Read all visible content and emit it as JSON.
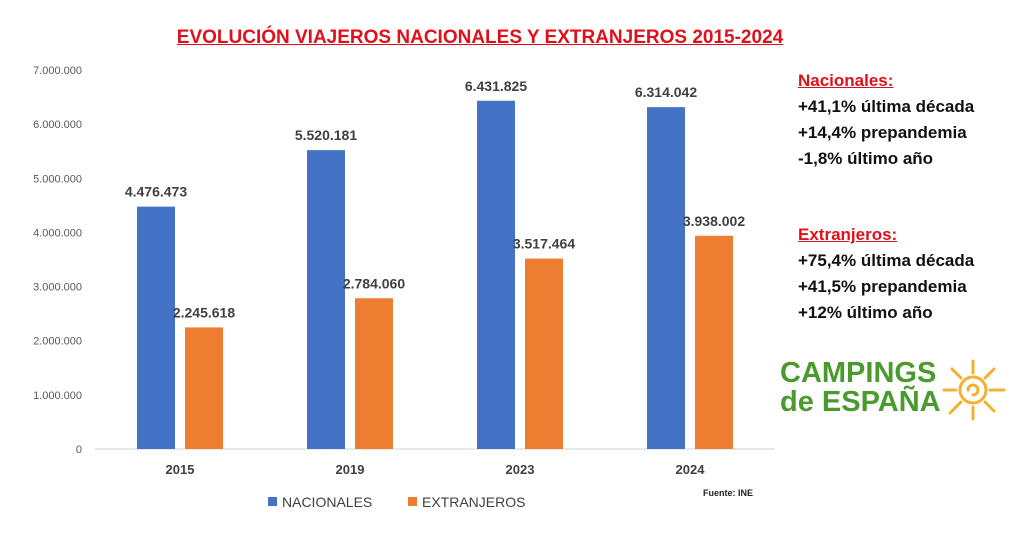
{
  "chart_data": {
    "type": "bar",
    "title": "EVOLUCIÓN VIAJEROS NACIONALES Y EXTRANJEROS 2015-2024",
    "categories": [
      "2015",
      "2019",
      "2023",
      "2024"
    ],
    "series": [
      {
        "name": "NACIONALES",
        "color": "#4472c4",
        "values": [
          4476473,
          5520181,
          6431825,
          6314042
        ],
        "labels": [
          "4.476.473",
          "5.520.181",
          "6.431.825",
          "6.314.042"
        ]
      },
      {
        "name": "EXTRANJEROS",
        "color": "#ed7d31",
        "values": [
          2245618,
          2784060,
          3517464,
          3938002
        ],
        "labels": [
          "2.245.618",
          "2.784.060",
          "3.517.464",
          "3.938.002"
        ]
      }
    ],
    "ylim": [
      0,
      7000000
    ],
    "yticks": [
      0,
      1000000,
      2000000,
      3000000,
      4000000,
      5000000,
      6000000,
      7000000
    ],
    "ytick_labels": [
      "0",
      "1.000.000",
      "2.000.000",
      "3.000.000",
      "4.000.000",
      "5.000.000",
      "6.000.000",
      "7.000.000"
    ],
    "grid": false,
    "legend": "bottom",
    "xlabel": "",
    "ylabel": ""
  },
  "notes": {
    "nacionales": {
      "heading": "Nacionales:",
      "lines": [
        "+41,1% última década",
        "+14,4% prepandemia",
        "-1,8% último año"
      ]
    },
    "extranjeros": {
      "heading": "Extranjeros:",
      "lines": [
        "+75,4% última década",
        "+41,5% prepandemia",
        "+12% último año"
      ]
    }
  },
  "logo": {
    "line1": "CAMPINGS",
    "line2": "de ESPAÑA"
  },
  "source": "Fuente: INE"
}
